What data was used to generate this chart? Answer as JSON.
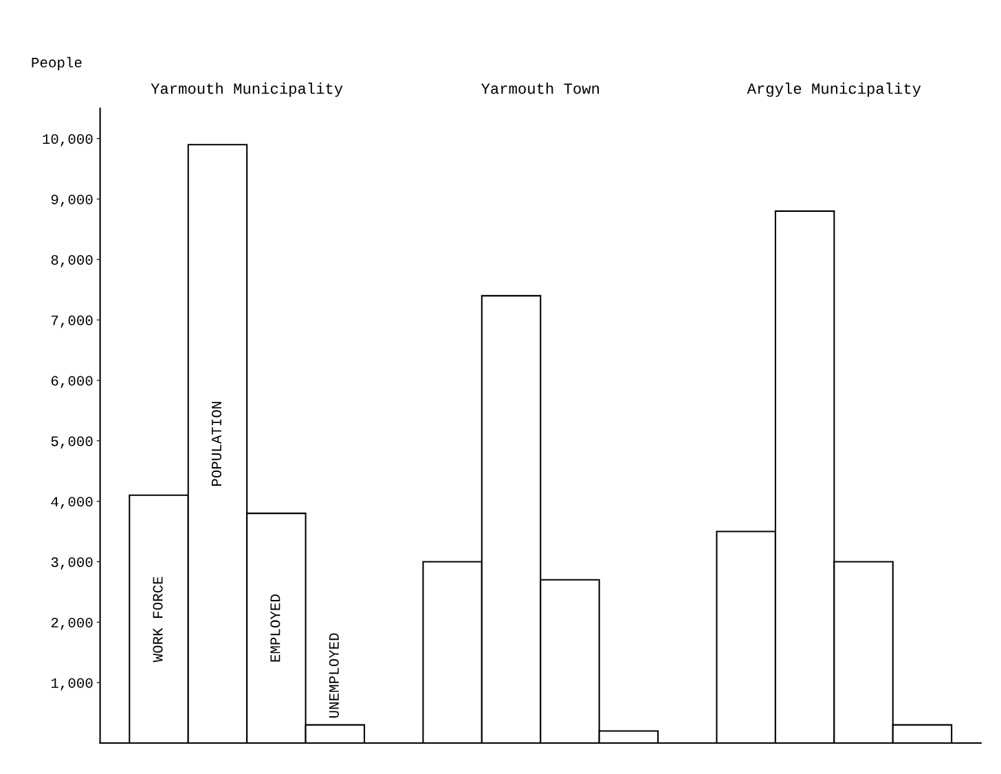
{
  "chart_data": {
    "type": "bar",
    "ylabel": "People",
    "categories": [
      "Yarmouth Municipality",
      "Yarmouth Town",
      "Argyle Municipality"
    ],
    "series": [
      {
        "name": "WORK FORCE",
        "color": "#ffffff",
        "values": [
          4100,
          3000,
          3500
        ]
      },
      {
        "name": "POPULATION",
        "color": "#ffffff",
        "values": [
          9900,
          7400,
          8800
        ]
      },
      {
        "name": "EMPLOYED",
        "color": "#ffffff",
        "values": [
          3800,
          2700,
          3000
        ]
      },
      {
        "name": "UNEMPLOYED",
        "color": "#ffffff",
        "values": [
          300,
          200,
          300
        ]
      }
    ],
    "ylim": [
      0,
      10500
    ],
    "yticks": [
      {
        "value": 1000,
        "label": "1,000"
      },
      {
        "value": 2000,
        "label": "2,000"
      },
      {
        "value": 3000,
        "label": "3,000"
      },
      {
        "value": 4000,
        "label": "4,000"
      },
      {
        "value": 5000,
        "label": "5,000"
      },
      {
        "value": 6000,
        "label": "6,000"
      },
      {
        "value": 7000,
        "label": "7,000"
      },
      {
        "value": 8000,
        "label": "8,000"
      },
      {
        "value": 9000,
        "label": "9,000"
      },
      {
        "value": 10000,
        "label": "10,000"
      }
    ],
    "grid": false,
    "legend": false
  }
}
